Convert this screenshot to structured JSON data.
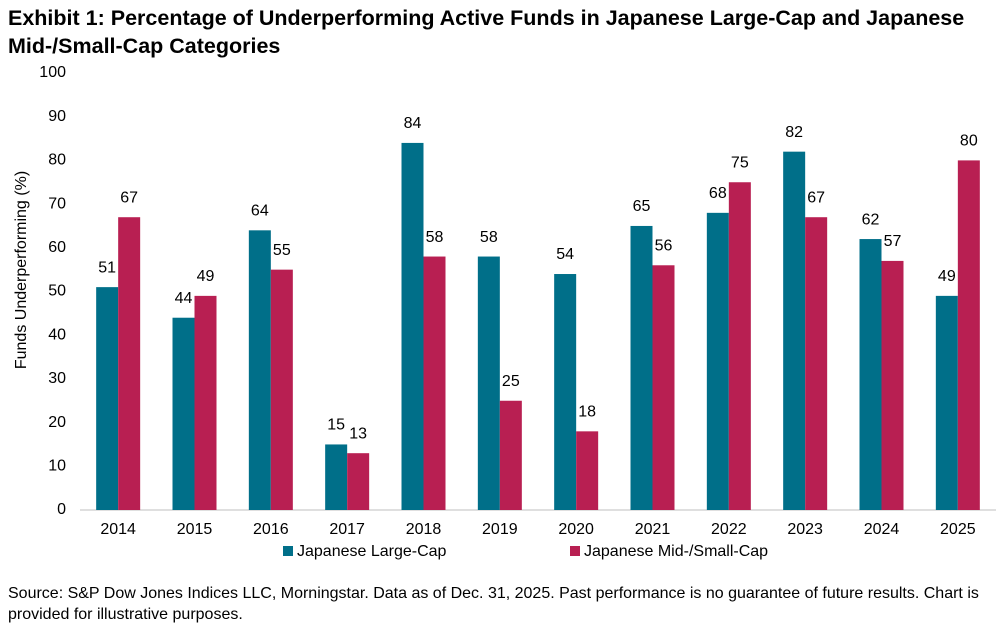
{
  "chart_data": {
    "type": "bar",
    "title": "Exhibit 1: Percentage of Underperforming Active Funds in Japanese Large-Cap and Japanese Mid-/Small-Cap Categories",
    "y_label": "Funds Underperforming (%)",
    "categories": [
      "2014",
      "2015",
      "2016",
      "2017",
      "2018",
      "2019",
      "2020",
      "2021",
      "2022",
      "2023",
      "2024",
      "2025"
    ],
    "series": [
      {
        "name": "Japanese Large-Cap",
        "color": "#006f89",
        "values": [
          51,
          44,
          64,
          15,
          84,
          58,
          54,
          65,
          68,
          82,
          62,
          49
        ]
      },
      {
        "name": "Japanese Mid-/Small-Cap",
        "color": "#b81f52",
        "values": [
          67,
          49,
          55,
          13,
          58,
          25,
          18,
          56,
          75,
          67,
          57,
          80
        ]
      }
    ],
    "ylim": [
      0,
      100
    ],
    "yticks": [
      0,
      10,
      20,
      30,
      40,
      50,
      60,
      70,
      80,
      90,
      100
    ],
    "grid": false,
    "legend": "bottom",
    "source": "Source: S&P Dow Jones Indices LLC, Morningstar. Data as of Dec. 31, 2025. Past performance is no guarantee of future results. Chart is provided for illustrative purposes."
  }
}
